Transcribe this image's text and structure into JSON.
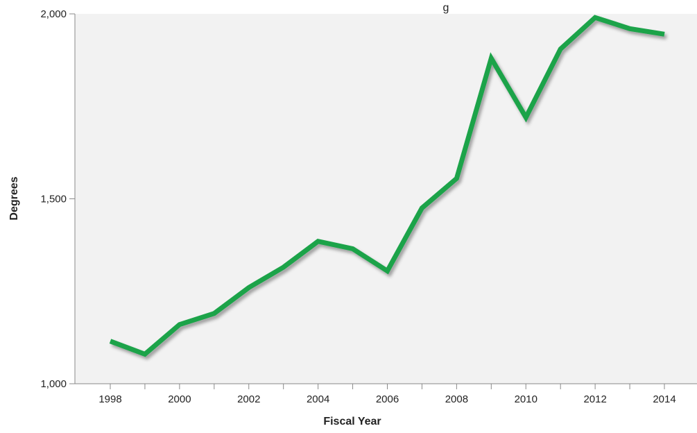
{
  "chart_data": {
    "type": "line",
    "title": "",
    "title_partial_visible": "g",
    "xlabel": "Fiscal Year",
    "ylabel": "Degrees",
    "x": [
      1998,
      1999,
      2000,
      2001,
      2002,
      2003,
      2004,
      2005,
      2006,
      2007,
      2008,
      2009,
      2010,
      2011,
      2012,
      2013,
      2014
    ],
    "series": [
      {
        "values": [
          1115,
          1080,
          1160,
          1190,
          1260,
          1315,
          1385,
          1365,
          1305,
          1475,
          1555,
          1880,
          1720,
          1905,
          1990,
          1960,
          1945
        ],
        "color": "#1aa34a"
      }
    ],
    "xticks": [
      "1998",
      "2000",
      "2002",
      "2004",
      "2006",
      "2008",
      "2010",
      "2012",
      "2014"
    ],
    "yticks": [
      "1,000",
      "1,500",
      "2,000"
    ],
    "ytick_values": [
      1000,
      1500,
      2000
    ],
    "xlim": [
      1998,
      2014
    ],
    "ylim": [
      1000,
      2000
    ],
    "grid": false,
    "legend": "none",
    "colors": {
      "plot_background": "#f2f2f2",
      "line": "#1aa34a",
      "axis": "#888888"
    }
  }
}
